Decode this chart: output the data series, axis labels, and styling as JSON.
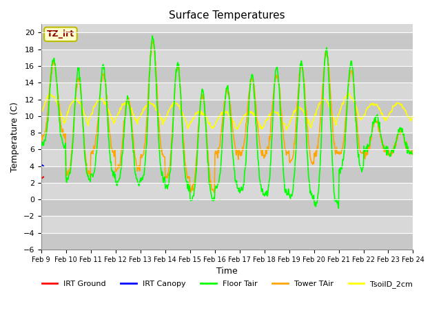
{
  "title": "Surface Temperatures",
  "xlabel": "Time",
  "ylabel": "Temperature (C)",
  "ylim": [
    -6,
    21
  ],
  "yticks": [
    -6,
    -4,
    -2,
    0,
    2,
    4,
    6,
    8,
    10,
    12,
    14,
    16,
    18,
    20
  ],
  "plot_bg_color": "#d8d8d8",
  "legend_entries": [
    {
      "label": "IRT Ground",
      "color": "#ff0000"
    },
    {
      "label": "IRT Canopy",
      "color": "#0000ff"
    },
    {
      "label": "Floor Tair",
      "color": "#00ff00"
    },
    {
      "label": "Tower TAir",
      "color": "#ffa500"
    },
    {
      "label": "TsoilD_2cm",
      "color": "#ffff00"
    }
  ],
  "x_tick_labels": [
    "Feb 9",
    "Feb 10",
    "Feb 11",
    "Feb 12",
    "Feb 13",
    "Feb 14",
    "Feb 15",
    "Feb 16",
    "Feb 17",
    "Feb 18",
    "Feb 19",
    "Feb 20",
    "Feb 21",
    "Feb 22",
    "Feb 23",
    "Feb 24"
  ],
  "annotation_box_text": "TZ_irt",
  "annotation_box_color": "#ffffcc",
  "annotation_box_edge_color": "#bbbb00",
  "annotation_text_color": "#8b0000",
  "grid_color": "#ffffff",
  "grid_linewidth": 0.8,
  "line_width": 1.2,
  "n_days": 15,
  "n_per_day": 48
}
